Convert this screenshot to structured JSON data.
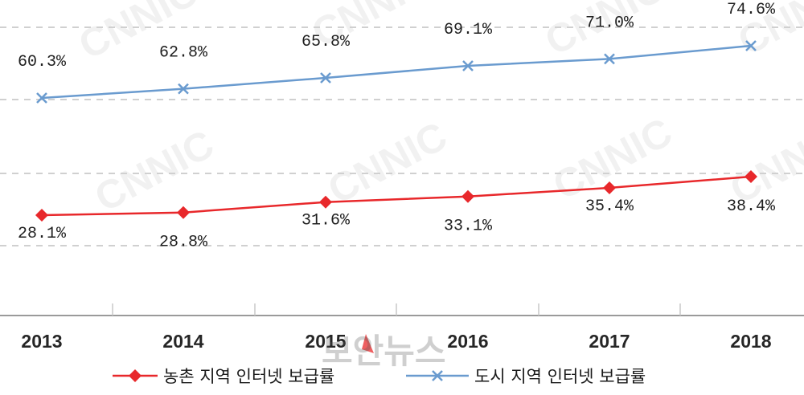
{
  "chart_data": {
    "type": "line",
    "categories": [
      "2013",
      "2014",
      "2015",
      "2016",
      "2017",
      "2018"
    ],
    "series": [
      {
        "name": "도시 지역 인터넷 보급률",
        "values": [
          60.3,
          62.8,
          65.8,
          69.1,
          71.0,
          74.6
        ],
        "labels": [
          "60.3%",
          "62.8%",
          "65.8%",
          "69.1%",
          "71.0%",
          "74.6%"
        ],
        "color": "#6a9bcf",
        "marker": "x"
      },
      {
        "name": "농촌 지역 인터넷 보급률",
        "values": [
          28.1,
          28.8,
          31.6,
          33.1,
          35.4,
          38.4
        ],
        "labels": [
          "28.1%",
          "28.8%",
          "31.6%",
          "33.1%",
          "35.4%",
          "38.4%"
        ],
        "color": "#e8282b",
        "marker": "diamond"
      }
    ],
    "title": "",
    "xlabel": "",
    "ylabel": "",
    "ylim": [
      0,
      80
    ],
    "grid": true,
    "legend_position": "bottom"
  },
  "watermark": {
    "text": "CNNIC"
  },
  "source_watermark": {
    "text": "보안뉴스"
  }
}
